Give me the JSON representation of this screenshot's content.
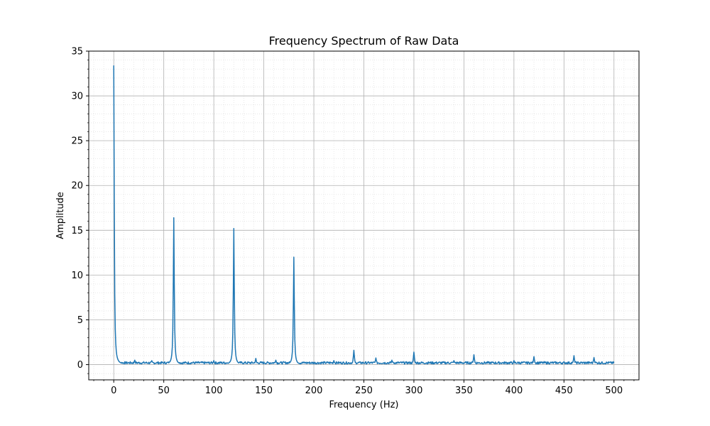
{
  "chart_data": {
    "type": "line",
    "title": "Frequency Spectrum of Raw Data",
    "xlabel": "Frequency (Hz)",
    "ylabel": "Amplitude",
    "xlim": [
      -25,
      525
    ],
    "ylim": [
      -1.7,
      35
    ],
    "xticks": [
      0,
      50,
      100,
      150,
      200,
      250,
      300,
      350,
      400,
      450,
      500
    ],
    "yticks": [
      0,
      5,
      10,
      15,
      20,
      25,
      30,
      35
    ],
    "grid": true,
    "minor_grid": true,
    "line_color": "#1f77b4",
    "noise_floor": 0.2,
    "peaks": [
      {
        "x": 0,
        "y": 33.4
      },
      {
        "x": 60,
        "y": 16.4
      },
      {
        "x": 120,
        "y": 15.2
      },
      {
        "x": 180,
        "y": 12.0
      },
      {
        "x": 240,
        "y": 1.6
      },
      {
        "x": 300,
        "y": 1.4
      },
      {
        "x": 360,
        "y": 1.1
      },
      {
        "x": 420,
        "y": 0.9
      },
      {
        "x": 460,
        "y": 1.0
      },
      {
        "x": 480,
        "y": 0.8
      },
      {
        "x": 21,
        "y": 0.5
      },
      {
        "x": 38,
        "y": 0.45
      },
      {
        "x": 100,
        "y": 0.45
      },
      {
        "x": 142,
        "y": 0.7
      },
      {
        "x": 162,
        "y": 0.5
      },
      {
        "x": 220,
        "y": 0.45
      },
      {
        "x": 262,
        "y": 0.75
      },
      {
        "x": 278,
        "y": 0.5
      },
      {
        "x": 340,
        "y": 0.45
      },
      {
        "x": 400,
        "y": 0.45
      }
    ]
  }
}
